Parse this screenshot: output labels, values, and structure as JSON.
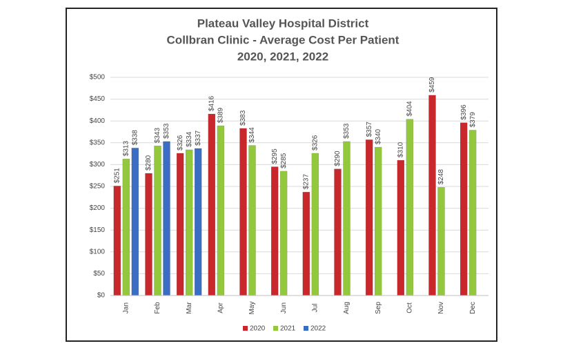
{
  "chart_data": {
    "type": "bar",
    "title_lines": [
      "Plateau Valley Hospital District",
      "Collbran Clinic  - Average Cost Per Patient",
      "2020, 2021, 2022"
    ],
    "categories": [
      "Jan",
      "Feb",
      "Mar",
      "Apr",
      "May",
      "Jun",
      "Jul",
      "Aug",
      "Sep",
      "Oct",
      "Nov",
      "Dec"
    ],
    "series": [
      {
        "name": "2020",
        "color": "#c8282c",
        "values": [
          251,
          280,
          326,
          416,
          383,
          295,
          237,
          290,
          357,
          310,
          459,
          396
        ],
        "value_labels": [
          "$251",
          "$280",
          "$326",
          "$416",
          "$383",
          "$295",
          "$237",
          "$290",
          "$357",
          "$310",
          "$459",
          "$396"
        ]
      },
      {
        "name": "2021",
        "color": "#94c83c",
        "values": [
          313,
          343,
          334,
          389,
          344,
          285,
          326,
          353,
          340,
          404,
          248,
          379
        ],
        "value_labels": [
          "$313",
          "$343",
          "$334",
          "$389",
          "$344",
          "$285",
          "$326",
          "$353",
          "$340",
          "$404",
          "$248",
          "$379"
        ]
      },
      {
        "name": "2022",
        "color": "#3a6ec4",
        "values": [
          338,
          353,
          337,
          null,
          null,
          null,
          null,
          null,
          null,
          null,
          null,
          null
        ],
        "value_labels": [
          "$338",
          "$353",
          "$337",
          null,
          null,
          null,
          null,
          null,
          null,
          null,
          null,
          null
        ]
      }
    ],
    "ylim": [
      0,
      500
    ],
    "yticks": [
      {
        "value": 0,
        "label": "$0"
      },
      {
        "value": 50,
        "label": "$50"
      },
      {
        "value": 100,
        "label": "$100"
      },
      {
        "value": 150,
        "label": "$150"
      },
      {
        "value": 200,
        "label": "$200"
      },
      {
        "value": 250,
        "label": "$250"
      },
      {
        "value": 300,
        "label": "$300"
      },
      {
        "value": 350,
        "label": "$350"
      },
      {
        "value": 400,
        "label": "$400"
      },
      {
        "value": 450,
        "label": "$450"
      },
      {
        "value": 500,
        "label": "$500"
      }
    ],
    "grid": true,
    "legend": "bottom"
  }
}
